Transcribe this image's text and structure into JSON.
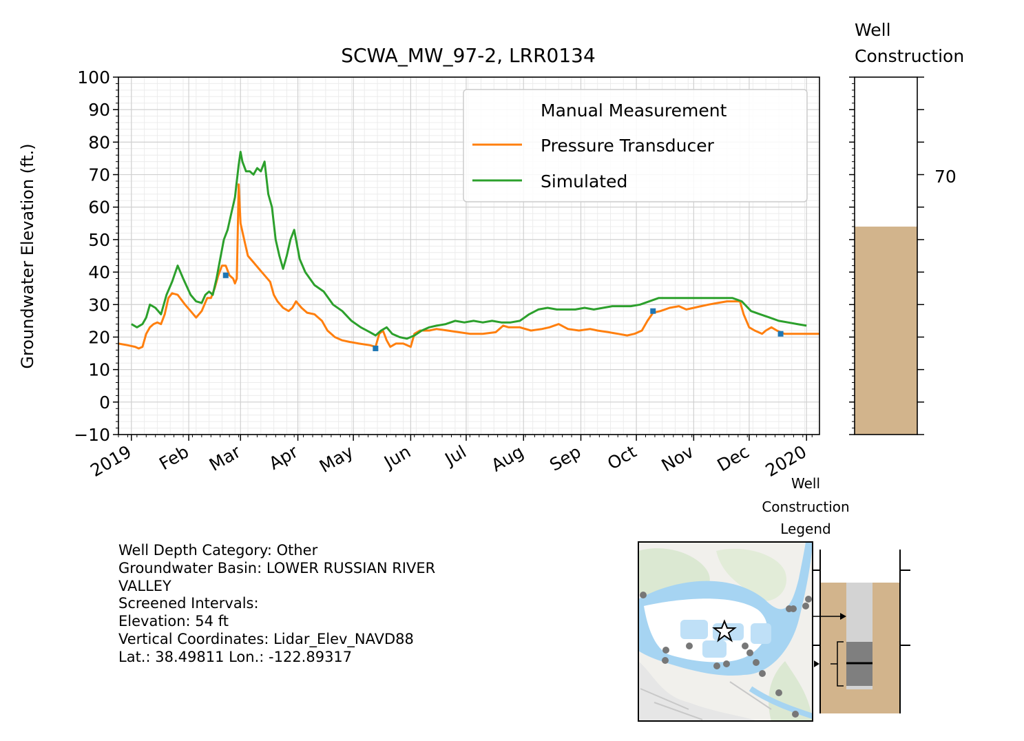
{
  "chart_data": {
    "type": "line",
    "title": "SCWA_MW_97-2, LRR0134",
    "ylabel": "Groundwater Elevation (ft.)",
    "xlabel": "",
    "ylim": [
      -10,
      100
    ],
    "yticks": [
      -10,
      0,
      10,
      20,
      30,
      40,
      50,
      60,
      70,
      80,
      90,
      100
    ],
    "xlim": [
      "2018-12-25",
      "2020-01-08"
    ],
    "xtick_dates": [
      "2019-01-01",
      "2019-02-01",
      "2019-03-01",
      "2019-04-01",
      "2019-05-01",
      "2019-06-01",
      "2019-07-01",
      "2019-08-01",
      "2019-09-01",
      "2019-10-01",
      "2019-11-01",
      "2019-12-01",
      "2020-01-01"
    ],
    "xtick_labels": [
      "2019",
      "Feb",
      "Mar",
      "Apr",
      "May",
      "Jun",
      "Jul",
      "Aug",
      "Sep",
      "Oct",
      "Nov",
      "Dec",
      "2020"
    ],
    "grid": true,
    "legend_position": "top-right",
    "colors": {
      "manual": "#1f77b4",
      "transducer": "#ff7f0e",
      "simulated": "#2ca02c",
      "sand": "#d2b48c"
    },
    "series": [
      {
        "name": "Manual Measurement",
        "style": "markers",
        "points": [
          [
            "2019-02-21",
            39
          ],
          [
            "2019-05-13",
            16.5
          ],
          [
            "2019-10-10",
            28
          ],
          [
            "2019-12-18",
            21
          ]
        ]
      },
      {
        "name": "Pressure Transducer",
        "style": "line",
        "points": [
          [
            "2018-12-25",
            18
          ],
          [
            "2018-12-30",
            17.5
          ],
          [
            "2019-01-03",
            17
          ],
          [
            "2019-01-05",
            16.5
          ],
          [
            "2019-01-07",
            17
          ],
          [
            "2019-01-09",
            21
          ],
          [
            "2019-01-11",
            23
          ],
          [
            "2019-01-13",
            24
          ],
          [
            "2019-01-15",
            24.5
          ],
          [
            "2019-01-17",
            24
          ],
          [
            "2019-01-19",
            27
          ],
          [
            "2019-01-21",
            32
          ],
          [
            "2019-01-23",
            33.5
          ],
          [
            "2019-01-26",
            33
          ],
          [
            "2019-01-30",
            30
          ],
          [
            "2019-02-02",
            28
          ],
          [
            "2019-02-05",
            26
          ],
          [
            "2019-02-08",
            28
          ],
          [
            "2019-02-11",
            32
          ],
          [
            "2019-02-13",
            32
          ],
          [
            "2019-02-15",
            35
          ],
          [
            "2019-02-17",
            39
          ],
          [
            "2019-02-19",
            42
          ],
          [
            "2019-02-21",
            42
          ],
          [
            "2019-02-23",
            39
          ],
          [
            "2019-02-25",
            38
          ],
          [
            "2019-02-26",
            36.5
          ],
          [
            "2019-02-27",
            38
          ],
          [
            "2019-02-28",
            67
          ],
          [
            "2019-03-01",
            55
          ],
          [
            "2019-03-03",
            50
          ],
          [
            "2019-03-05",
            45
          ],
          [
            "2019-03-08",
            43
          ],
          [
            "2019-03-11",
            41
          ],
          [
            "2019-03-14",
            39
          ],
          [
            "2019-03-17",
            37
          ],
          [
            "2019-03-19",
            33
          ],
          [
            "2019-03-21",
            31
          ],
          [
            "2019-03-24",
            29
          ],
          [
            "2019-03-27",
            28
          ],
          [
            "2019-03-29",
            29
          ],
          [
            "2019-03-31",
            31
          ],
          [
            "2019-04-03",
            29
          ],
          [
            "2019-04-06",
            27.5
          ],
          [
            "2019-04-10",
            27
          ],
          [
            "2019-04-14",
            25
          ],
          [
            "2019-04-17",
            22
          ],
          [
            "2019-04-21",
            20
          ],
          [
            "2019-04-25",
            19
          ],
          [
            "2019-04-29",
            18.5
          ],
          [
            "2019-05-04",
            18
          ],
          [
            "2019-05-10",
            17.5
          ],
          [
            "2019-05-13",
            17
          ],
          [
            "2019-05-15",
            21
          ],
          [
            "2019-05-17",
            22
          ],
          [
            "2019-05-19",
            19
          ],
          [
            "2019-05-21",
            17
          ],
          [
            "2019-05-24",
            18
          ],
          [
            "2019-05-28",
            18
          ],
          [
            "2019-06-01",
            17
          ],
          [
            "2019-06-03",
            21
          ],
          [
            "2019-06-06",
            22
          ],
          [
            "2019-06-11",
            22
          ],
          [
            "2019-06-15",
            22.5
          ],
          [
            "2019-06-21",
            22
          ],
          [
            "2019-06-27",
            21.5
          ],
          [
            "2019-07-03",
            21
          ],
          [
            "2019-07-10",
            21
          ],
          [
            "2019-07-17",
            21.5
          ],
          [
            "2019-07-21",
            23.5
          ],
          [
            "2019-07-24",
            23
          ],
          [
            "2019-07-30",
            23
          ],
          [
            "2019-08-05",
            22
          ],
          [
            "2019-08-11",
            22.5
          ],
          [
            "2019-08-15",
            23
          ],
          [
            "2019-08-20",
            24
          ],
          [
            "2019-08-25",
            22.5
          ],
          [
            "2019-08-31",
            22
          ],
          [
            "2019-09-06",
            22.5
          ],
          [
            "2019-09-10",
            22
          ],
          [
            "2019-09-16",
            21.5
          ],
          [
            "2019-09-21",
            21
          ],
          [
            "2019-09-26",
            20.5
          ],
          [
            "2019-09-30",
            21
          ],
          [
            "2019-10-04",
            22
          ],
          [
            "2019-10-07",
            25
          ],
          [
            "2019-10-10",
            27.5
          ],
          [
            "2019-10-14",
            28
          ],
          [
            "2019-10-19",
            29
          ],
          [
            "2019-10-24",
            29.5
          ],
          [
            "2019-10-28",
            28.5
          ],
          [
            "2019-11-01",
            29
          ],
          [
            "2019-11-05",
            29.5
          ],
          [
            "2019-11-09",
            30
          ],
          [
            "2019-11-14",
            30.5
          ],
          [
            "2019-11-19",
            31
          ],
          [
            "2019-11-23",
            31
          ],
          [
            "2019-11-26",
            31
          ],
          [
            "2019-11-28",
            27
          ],
          [
            "2019-12-01",
            23
          ],
          [
            "2019-12-04",
            22
          ],
          [
            "2019-12-08",
            21
          ],
          [
            "2019-12-10",
            22
          ],
          [
            "2019-12-13",
            23
          ],
          [
            "2019-12-16",
            22
          ],
          [
            "2019-12-20",
            21
          ],
          [
            "2019-12-26",
            21
          ],
          [
            "2020-01-08",
            21
          ]
        ]
      },
      {
        "name": "Simulated",
        "style": "line",
        "points": [
          [
            "2019-01-01",
            24
          ],
          [
            "2019-01-04",
            23
          ],
          [
            "2019-01-07",
            24
          ],
          [
            "2019-01-09",
            26
          ],
          [
            "2019-01-11",
            30
          ],
          [
            "2019-01-14",
            29
          ],
          [
            "2019-01-17",
            27
          ],
          [
            "2019-01-20",
            33
          ],
          [
            "2019-01-23",
            37
          ],
          [
            "2019-01-26",
            42
          ],
          [
            "2019-01-29",
            38
          ],
          [
            "2019-02-02",
            33
          ],
          [
            "2019-02-05",
            31
          ],
          [
            "2019-02-08",
            30.5
          ],
          [
            "2019-02-10",
            33
          ],
          [
            "2019-02-12",
            34
          ],
          [
            "2019-02-14",
            33
          ],
          [
            "2019-02-16",
            38
          ],
          [
            "2019-02-18",
            44
          ],
          [
            "2019-02-20",
            50
          ],
          [
            "2019-02-22",
            53
          ],
          [
            "2019-02-24",
            58
          ],
          [
            "2019-02-26",
            63
          ],
          [
            "2019-02-27",
            68
          ],
          [
            "2019-02-28",
            73
          ],
          [
            "2019-03-01",
            77
          ],
          [
            "2019-03-02",
            74
          ],
          [
            "2019-03-04",
            71
          ],
          [
            "2019-03-06",
            71
          ],
          [
            "2019-03-08",
            70
          ],
          [
            "2019-03-10",
            72
          ],
          [
            "2019-03-12",
            71
          ],
          [
            "2019-03-14",
            74
          ],
          [
            "2019-03-16",
            64
          ],
          [
            "2019-03-18",
            60
          ],
          [
            "2019-03-20",
            50
          ],
          [
            "2019-03-22",
            45
          ],
          [
            "2019-03-24",
            41
          ],
          [
            "2019-03-26",
            45
          ],
          [
            "2019-03-28",
            50
          ],
          [
            "2019-03-30",
            53
          ],
          [
            "2019-04-02",
            44
          ],
          [
            "2019-04-05",
            40
          ],
          [
            "2019-04-10",
            36
          ],
          [
            "2019-04-15",
            34
          ],
          [
            "2019-04-20",
            30
          ],
          [
            "2019-04-25",
            28
          ],
          [
            "2019-04-30",
            25
          ],
          [
            "2019-05-05",
            23
          ],
          [
            "2019-05-10",
            21.5
          ],
          [
            "2019-05-13",
            20.5
          ],
          [
            "2019-05-16",
            22
          ],
          [
            "2019-05-19",
            23
          ],
          [
            "2019-05-22",
            21
          ],
          [
            "2019-05-26",
            20
          ],
          [
            "2019-05-30",
            19.5
          ],
          [
            "2019-06-03",
            20.5
          ],
          [
            "2019-06-07",
            22
          ],
          [
            "2019-06-11",
            23
          ],
          [
            "2019-06-15",
            23.5
          ],
          [
            "2019-06-20",
            24
          ],
          [
            "2019-06-25",
            25
          ],
          [
            "2019-06-30",
            24.5
          ],
          [
            "2019-07-05",
            25
          ],
          [
            "2019-07-10",
            24.5
          ],
          [
            "2019-07-15",
            25
          ],
          [
            "2019-07-20",
            24.5
          ],
          [
            "2019-07-25",
            24.5
          ],
          [
            "2019-07-30",
            25
          ],
          [
            "2019-08-04",
            27
          ],
          [
            "2019-08-09",
            28.5
          ],
          [
            "2019-08-14",
            29
          ],
          [
            "2019-08-19",
            28.5
          ],
          [
            "2019-08-24",
            28.5
          ],
          [
            "2019-08-29",
            28.5
          ],
          [
            "2019-09-03",
            29
          ],
          [
            "2019-09-08",
            28.5
          ],
          [
            "2019-09-13",
            29
          ],
          [
            "2019-09-18",
            29.5
          ],
          [
            "2019-09-23",
            29.5
          ],
          [
            "2019-09-28",
            29.5
          ],
          [
            "2019-10-03",
            30
          ],
          [
            "2019-10-08",
            31
          ],
          [
            "2019-10-13",
            32
          ],
          [
            "2019-10-18",
            32
          ],
          [
            "2019-10-23",
            32
          ],
          [
            "2019-10-28",
            32
          ],
          [
            "2019-11-02",
            32
          ],
          [
            "2019-11-07",
            32
          ],
          [
            "2019-11-12",
            32
          ],
          [
            "2019-11-17",
            32
          ],
          [
            "2019-11-22",
            32
          ],
          [
            "2019-11-27",
            31
          ],
          [
            "2019-12-02",
            28
          ],
          [
            "2019-12-07",
            27
          ],
          [
            "2019-12-12",
            26
          ],
          [
            "2019-12-17",
            25
          ],
          [
            "2019-12-22",
            24.5
          ],
          [
            "2019-12-27",
            24
          ],
          [
            "2020-01-01",
            23.5
          ]
        ]
      }
    ]
  },
  "well_construction": {
    "title": "Well Construction",
    "ytick_label": "70",
    "ground_surface_elevation": 54
  },
  "info": {
    "lines": [
      "Well Depth Category: Other",
      "Groundwater Basin: LOWER RUSSIAN RIVER",
      "VALLEY",
      "Screened Intervals:",
      "Elevation: 54 ft",
      "Vertical Coordinates: Lidar_Elev_NAVD88",
      "Lat.: 38.49811 Lon.: -122.89317"
    ]
  },
  "legend_panel": {
    "title": "Well Construction Legend"
  },
  "map": {
    "star_icon": "star-icon",
    "dot_icon": "dot-icon"
  }
}
